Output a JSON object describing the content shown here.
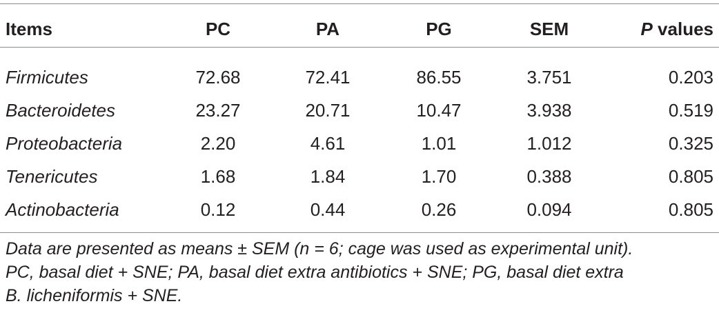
{
  "table": {
    "headers": {
      "items": "Items",
      "pc": "PC",
      "pa": "PA",
      "pg": "PG",
      "sem": "SEM",
      "p_italic": "P",
      "p_rest": " values"
    },
    "rows": [
      {
        "item": "Firmicutes",
        "pc": "72.68",
        "pa": "72.41",
        "pg": "86.55",
        "sem": "3.751",
        "p": "0.203"
      },
      {
        "item": "Bacteroidetes",
        "pc": "23.27",
        "pa": "20.71",
        "pg": "10.47",
        "sem": "3.938",
        "p": "0.519"
      },
      {
        "item": "Proteobacteria",
        "pc": "2.20",
        "pa": "4.61",
        "pg": "1.01",
        "sem": "1.012",
        "p": "0.325"
      },
      {
        "item": "Tenericutes",
        "pc": "1.68",
        "pa": "1.84",
        "pg": "1.70",
        "sem": "0.388",
        "p": "0.805"
      },
      {
        "item": "Actinobacteria",
        "pc": "0.12",
        "pa": "0.44",
        "pg": "0.26",
        "sem": "0.094",
        "p": "0.805"
      }
    ]
  },
  "footnote": {
    "line1": "Data are presented as means ± SEM (n = 6; cage was used as experimental unit).",
    "line2": "PC, basal diet + SNE; PA, basal diet extra antibiotics + SNE; PG, basal diet extra",
    "line3": "B. licheniformis + SNE."
  }
}
